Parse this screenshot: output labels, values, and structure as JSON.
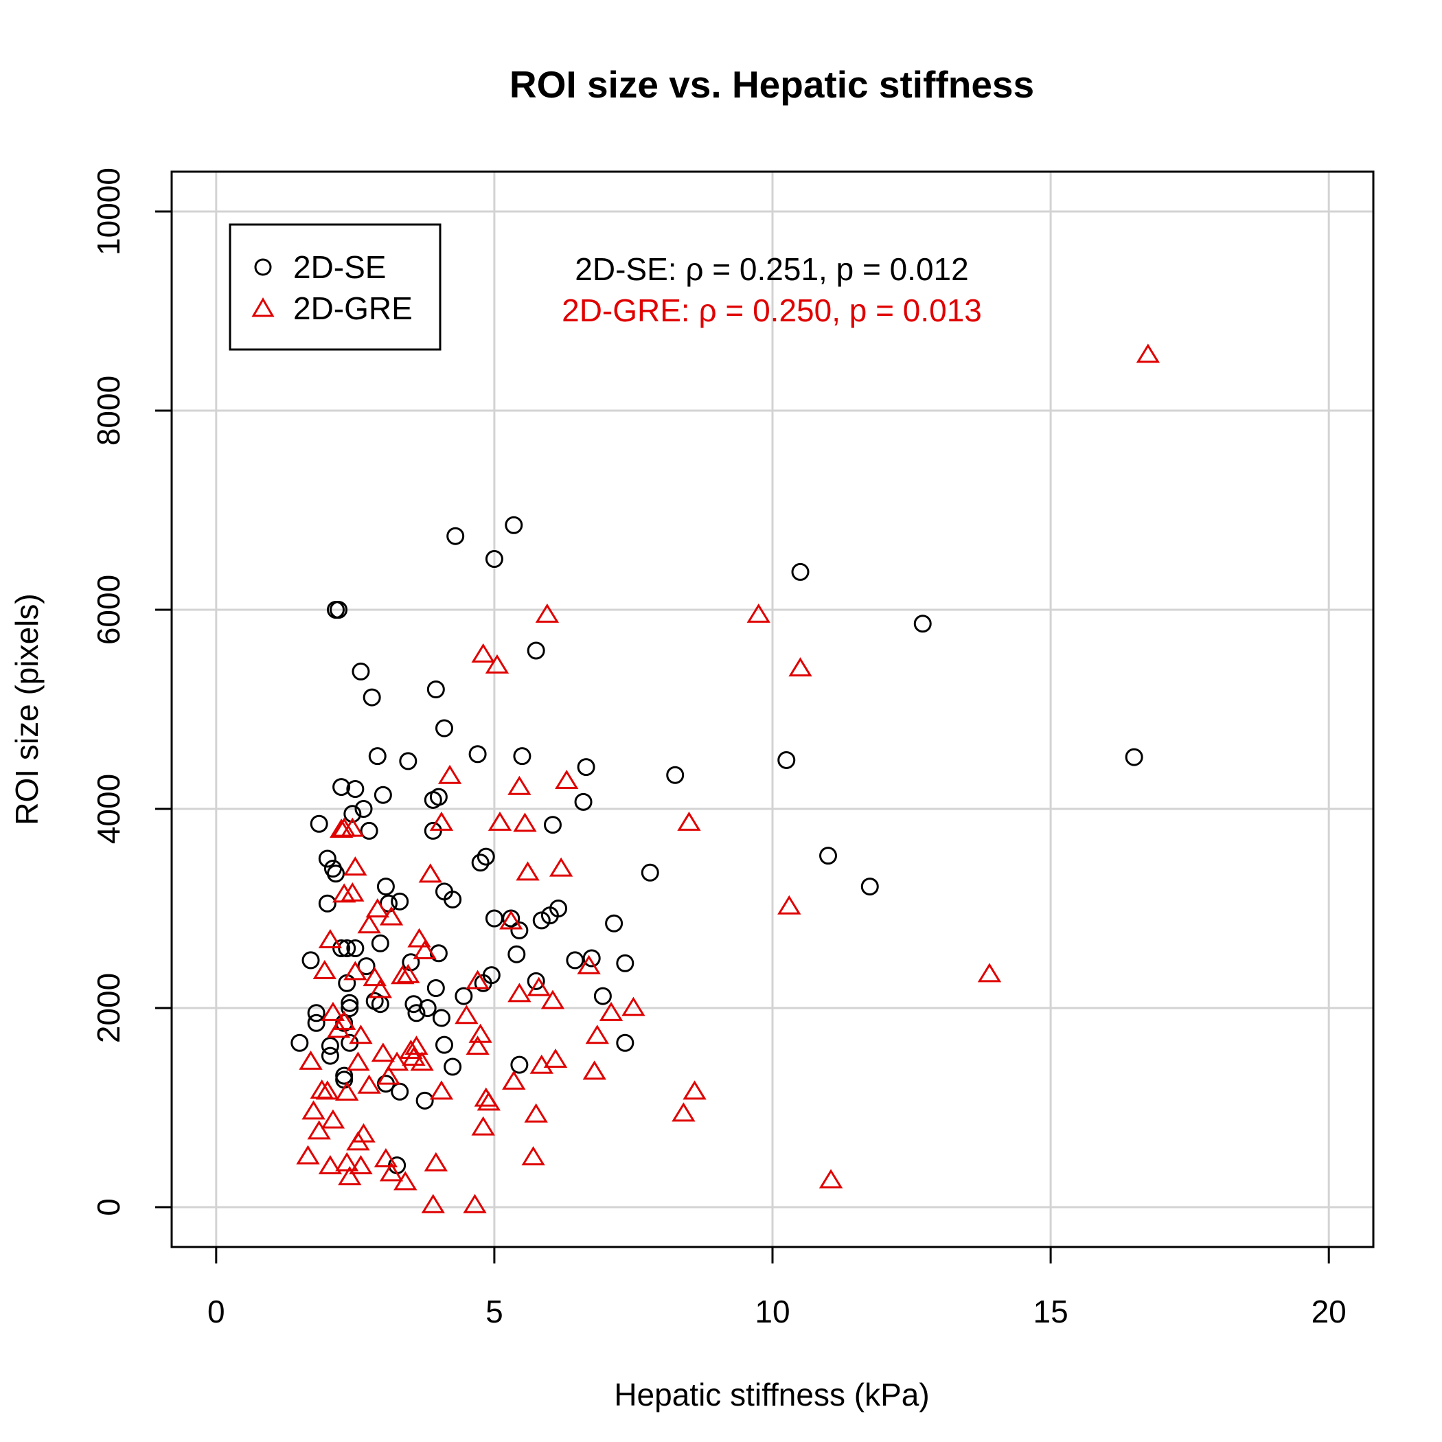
{
  "chart_data": {
    "type": "scatter",
    "title": "ROI size vs. Hepatic stiffness",
    "xlabel": "Hepatic stiffness (kPa)",
    "ylabel": "ROI size (pixels)",
    "xlim": [
      -0.8,
      20.8
    ],
    "ylim": [
      -400,
      10400
    ],
    "xticks": [
      0,
      5,
      10,
      15,
      20
    ],
    "yticks": [
      0,
      2000,
      4000,
      6000,
      8000,
      10000
    ],
    "xtick_labels": [
      "0",
      "5",
      "10",
      "15",
      "20"
    ],
    "ytick_labels": [
      "0",
      "2000",
      "4000",
      "6000",
      "8000",
      "10000"
    ],
    "grid": true,
    "legend_position": "top-left",
    "series": [
      {
        "name": "2D-SE",
        "marker": "circle",
        "color": "#000000",
        "points": [
          [
            1.5,
            1650
          ],
          [
            1.7,
            2480
          ],
          [
            1.8,
            1950
          ],
          [
            1.8,
            1850
          ],
          [
            1.85,
            3850
          ],
          [
            2.0,
            3500
          ],
          [
            2.0,
            3050
          ],
          [
            2.05,
            1620
          ],
          [
            2.05,
            1520
          ],
          [
            2.1,
            3400
          ],
          [
            2.15,
            3350
          ],
          [
            2.15,
            6000
          ],
          [
            2.2,
            6000
          ],
          [
            2.25,
            4220
          ],
          [
            2.25,
            2600
          ],
          [
            2.3,
            1850
          ],
          [
            2.3,
            1320
          ],
          [
            2.3,
            1280
          ],
          [
            2.35,
            2600
          ],
          [
            2.35,
            2250
          ],
          [
            2.4,
            2050
          ],
          [
            2.4,
            2000
          ],
          [
            2.4,
            1650
          ],
          [
            2.45,
            3950
          ],
          [
            2.5,
            4200
          ],
          [
            2.5,
            2600
          ],
          [
            2.6,
            5380
          ],
          [
            2.65,
            4000
          ],
          [
            2.7,
            2420
          ],
          [
            2.75,
            3780
          ],
          [
            2.8,
            5120
          ],
          [
            2.85,
            2070
          ],
          [
            2.9,
            4530
          ],
          [
            2.95,
            2650
          ],
          [
            2.95,
            2040
          ],
          [
            3.0,
            4140
          ],
          [
            3.05,
            3220
          ],
          [
            3.05,
            1240
          ],
          [
            3.1,
            3050
          ],
          [
            3.25,
            420
          ],
          [
            3.3,
            1160
          ],
          [
            3.3,
            3070
          ],
          [
            3.45,
            4480
          ],
          [
            3.5,
            2460
          ],
          [
            3.55,
            2040
          ],
          [
            3.6,
            1950
          ],
          [
            3.75,
            1070
          ],
          [
            3.8,
            2000
          ],
          [
            3.9,
            3780
          ],
          [
            3.9,
            4090
          ],
          [
            3.95,
            2200
          ],
          [
            3.95,
            5200
          ],
          [
            4.0,
            4120
          ],
          [
            4.0,
            2550
          ],
          [
            4.05,
            1900
          ],
          [
            4.1,
            4810
          ],
          [
            4.1,
            3170
          ],
          [
            4.1,
            1630
          ],
          [
            4.25,
            3090
          ],
          [
            4.25,
            1410
          ],
          [
            4.3,
            6740
          ],
          [
            4.45,
            2120
          ],
          [
            4.7,
            4550
          ],
          [
            4.75,
            3460
          ],
          [
            4.8,
            2250
          ],
          [
            4.85,
            3520
          ],
          [
            4.95,
            2330
          ],
          [
            5.0,
            2900
          ],
          [
            5.0,
            6510
          ],
          [
            5.3,
            2900
          ],
          [
            5.35,
            6850
          ],
          [
            5.4,
            2540
          ],
          [
            5.45,
            1430
          ],
          [
            5.45,
            2780
          ],
          [
            5.5,
            4530
          ],
          [
            5.75,
            5590
          ],
          [
            5.75,
            2270
          ],
          [
            5.85,
            2880
          ],
          [
            6.0,
            2930
          ],
          [
            6.05,
            3840
          ],
          [
            6.15,
            3000
          ],
          [
            6.45,
            2480
          ],
          [
            6.6,
            4070
          ],
          [
            6.65,
            4420
          ],
          [
            6.75,
            2500
          ],
          [
            6.95,
            2120
          ],
          [
            7.15,
            2850
          ],
          [
            7.35,
            2450
          ],
          [
            7.35,
            1650
          ],
          [
            7.8,
            3360
          ],
          [
            8.25,
            4340
          ],
          [
            10.25,
            4490
          ],
          [
            10.5,
            6380
          ],
          [
            11.0,
            3530
          ],
          [
            11.75,
            3220
          ],
          [
            12.7,
            5860
          ],
          [
            16.5,
            4520
          ]
        ]
      },
      {
        "name": "2D-GRE",
        "marker": "triangle",
        "color": "#e00000",
        "points": [
          [
            1.65,
            510
          ],
          [
            1.7,
            1460
          ],
          [
            1.75,
            960
          ],
          [
            1.85,
            760
          ],
          [
            1.9,
            1170
          ],
          [
            1.95,
            2370
          ],
          [
            2.0,
            1160
          ],
          [
            2.05,
            2680
          ],
          [
            2.05,
            410
          ],
          [
            2.1,
            1950
          ],
          [
            2.1,
            870
          ],
          [
            2.2,
            1780
          ],
          [
            2.25,
            3790
          ],
          [
            2.3,
            3800
          ],
          [
            2.3,
            1860
          ],
          [
            2.3,
            3140
          ],
          [
            2.35,
            1150
          ],
          [
            2.35,
            440
          ],
          [
            2.4,
            300
          ],
          [
            2.45,
            3800
          ],
          [
            2.45,
            3150
          ],
          [
            2.5,
            2360
          ],
          [
            2.5,
            3410
          ],
          [
            2.55,
            1450
          ],
          [
            2.55,
            650
          ],
          [
            2.6,
            410
          ],
          [
            2.6,
            1720
          ],
          [
            2.65,
            730
          ],
          [
            2.75,
            1220
          ],
          [
            2.75,
            2830
          ],
          [
            2.85,
            2300
          ],
          [
            2.9,
            2990
          ],
          [
            2.95,
            2180
          ],
          [
            3.0,
            1540
          ],
          [
            3.05,
            480
          ],
          [
            3.1,
            1310
          ],
          [
            3.15,
            2910
          ],
          [
            3.15,
            340
          ],
          [
            3.25,
            1450
          ],
          [
            3.35,
            2320
          ],
          [
            3.4,
            250
          ],
          [
            3.45,
            2330
          ],
          [
            3.5,
            1570
          ],
          [
            3.55,
            1500
          ],
          [
            3.6,
            1610
          ],
          [
            3.65,
            2690
          ],
          [
            3.7,
            1450
          ],
          [
            3.75,
            2570
          ],
          [
            3.85,
            3340
          ],
          [
            3.9,
            20
          ],
          [
            3.95,
            440
          ],
          [
            4.05,
            1160
          ],
          [
            4.05,
            3860
          ],
          [
            4.2,
            4330
          ],
          [
            4.5,
            1920
          ],
          [
            4.65,
            20
          ],
          [
            4.7,
            2270
          ],
          [
            4.7,
            1610
          ],
          [
            4.75,
            1730
          ],
          [
            4.8,
            5550
          ],
          [
            4.8,
            800
          ],
          [
            4.85,
            1090
          ],
          [
            4.9,
            1050
          ],
          [
            5.05,
            5440
          ],
          [
            5.1,
            3860
          ],
          [
            5.3,
            2870
          ],
          [
            5.35,
            1260
          ],
          [
            5.45,
            2140
          ],
          [
            5.45,
            4220
          ],
          [
            5.55,
            3850
          ],
          [
            5.6,
            3360
          ],
          [
            5.7,
            500
          ],
          [
            5.75,
            930
          ],
          [
            5.8,
            2200
          ],
          [
            5.85,
            1420
          ],
          [
            5.95,
            5950
          ],
          [
            6.05,
            2070
          ],
          [
            6.1,
            1480
          ],
          [
            6.2,
            3400
          ],
          [
            6.3,
            4280
          ],
          [
            6.7,
            2420
          ],
          [
            6.8,
            1360
          ],
          [
            6.85,
            1720
          ],
          [
            7.1,
            1950
          ],
          [
            7.5,
            2000
          ],
          [
            8.4,
            940
          ],
          [
            8.5,
            3860
          ],
          [
            8.6,
            1160
          ],
          [
            9.75,
            5950
          ],
          [
            10.3,
            3020
          ],
          [
            10.5,
            5410
          ],
          [
            11.05,
            270
          ],
          [
            13.9,
            2340
          ],
          [
            16.75,
            8560
          ]
        ]
      }
    ],
    "annotations": [
      {
        "text": "2D-SE: ρ = 0.251, p = 0.012",
        "color": "#000000"
      },
      {
        "text": "2D-GRE: ρ = 0.250, p = 0.013",
        "color": "#e00000"
      }
    ]
  }
}
